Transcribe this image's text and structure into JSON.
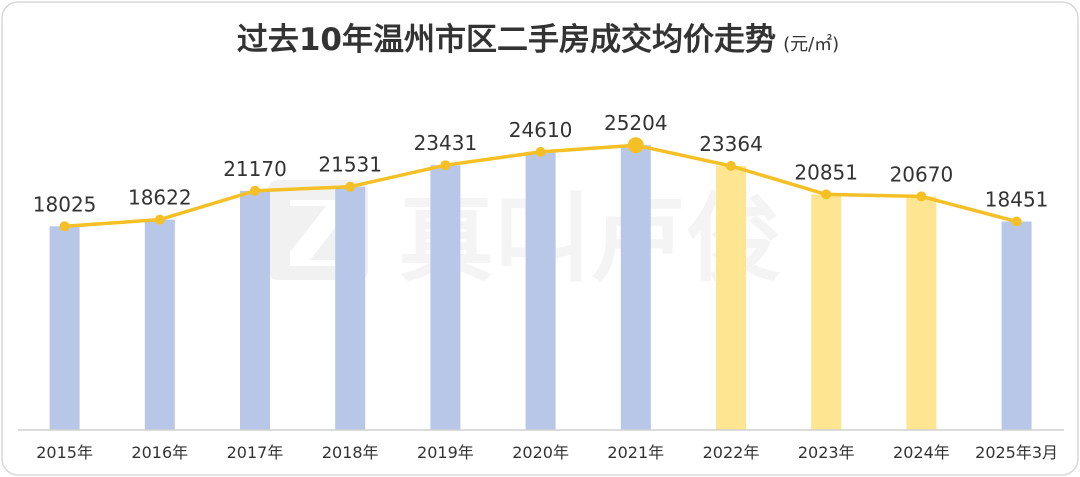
{
  "watermark": {
    "logo_mark": "Z",
    "text": "真叫卢俊"
  },
  "chart_data": {
    "type": "bar",
    "title": "过去10年温州市区二手房成交均价走势",
    "title_unit": "(元/㎡)",
    "xlabel": "",
    "ylabel": "",
    "categories": [
      "2015年",
      "2016年",
      "2017年",
      "2018年",
      "2019年",
      "2020年",
      "2021年",
      "2022年",
      "2023年",
      "2024年",
      "2025年3月"
    ],
    "series": [
      {
        "values": [
          18025,
          18622,
          21170,
          21531,
          23431,
          24610,
          25204,
          23364,
          20851,
          20670,
          18451
        ],
        "render": "bar+line",
        "bar_colors": [
          "#b8c7e8",
          "#b8c7e8",
          "#b8c7e8",
          "#b8c7e8",
          "#b8c7e8",
          "#b8c7e8",
          "#b8c7e8",
          "#fde592",
          "#fde592",
          "#fde592",
          "#b8c7e8"
        ]
      }
    ],
    "line_color": "#f5c026",
    "highlight_index": 6,
    "ylim": [
      0,
      30000
    ],
    "grid": false,
    "legend": "none",
    "data_labels": true
  }
}
